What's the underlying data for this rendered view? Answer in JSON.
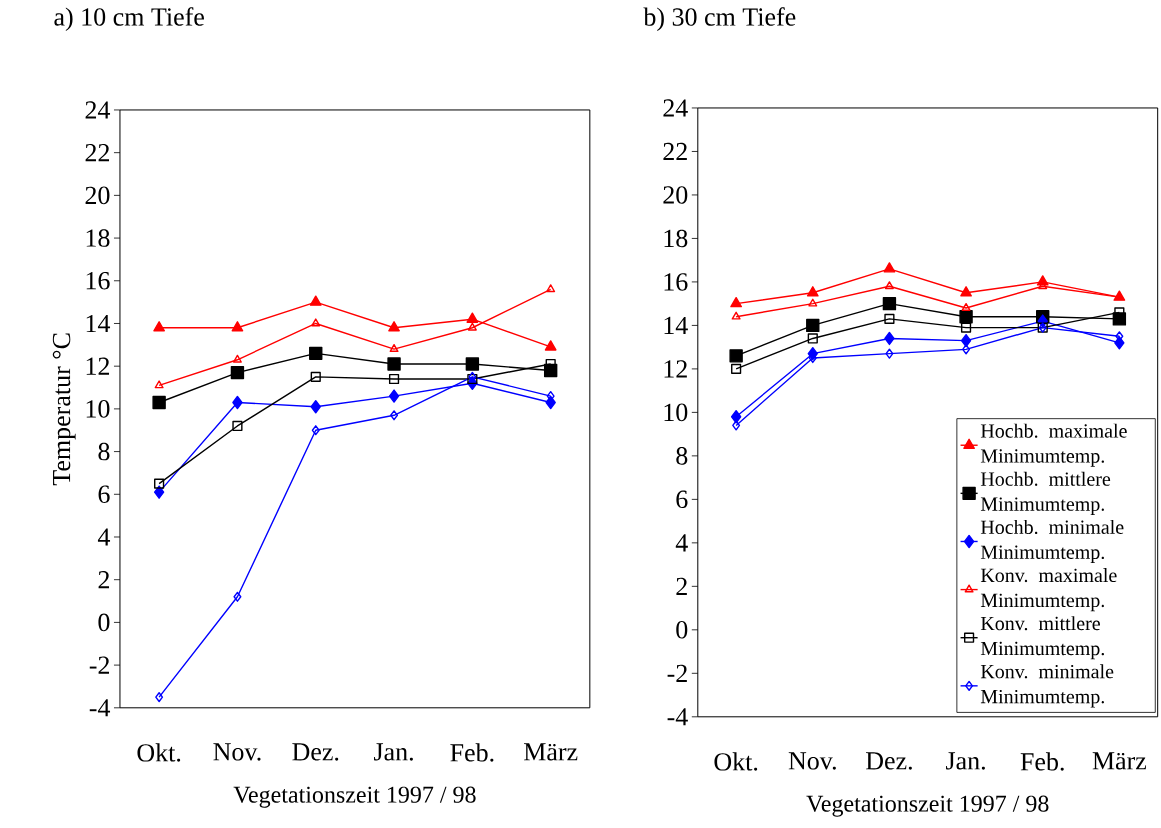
{
  "chart_data": [
    {
      "type": "line",
      "title": "a) 10 cm Tiefe",
      "xlabel": "Vegetationszeit 1997 / 98",
      "ylabel": "Temperatur °C",
      "categories": [
        "Okt.",
        "Nov.",
        "Dez.",
        "Jan.",
        "Feb.",
        "März"
      ],
      "ylim": [
        -4,
        24
      ],
      "yticks": [
        -4,
        -2,
        0,
        2,
        4,
        6,
        8,
        10,
        12,
        14,
        16,
        18,
        20,
        22,
        24
      ],
      "grid": false,
      "legend": false,
      "series": [
        {
          "color": "#ff0000",
          "marker": "triangle",
          "values": [
            13.8,
            13.8,
            15.0,
            13.8,
            14.2,
            12.9
          ]
        },
        {
          "color": "#000000",
          "marker": "square",
          "values": [
            10.3,
            11.7,
            12.6,
            12.1,
            12.1,
            11.8
          ]
        },
        {
          "color": "#0000ff",
          "marker": "diamond",
          "values": [
            6.1,
            10.3,
            10.1,
            10.6,
            11.2,
            10.3
          ]
        },
        {
          "color": "#ff0000",
          "marker": "triangle open",
          "values": [
            11.1,
            12.3,
            14.0,
            12.8,
            13.8,
            15.6
          ]
        },
        {
          "color": "#000000",
          "marker": "square open",
          "values": [
            6.5,
            9.2,
            11.5,
            11.4,
            11.4,
            12.1
          ]
        },
        {
          "color": "#0000ff",
          "marker": "diamond open",
          "values": [
            -3.5,
            1.2,
            9.0,
            9.7,
            11.5,
            10.6
          ]
        }
      ]
    },
    {
      "type": "line",
      "title": "b) 30 cm Tiefe",
      "xlabel": "Vegetationszeit 1997 / 98",
      "categories": [
        "Okt.",
        "Nov.",
        "Dez.",
        "Jan.",
        "Feb.",
        "März"
      ],
      "ylim": [
        -4,
        24
      ],
      "yticks": [
        -4,
        -2,
        0,
        2,
        4,
        6,
        8,
        10,
        12,
        14,
        16,
        18,
        20,
        22,
        24
      ],
      "grid": false,
      "legend": "bottom right",
      "series": [
        {
          "name": "Hochb. maximale Minimumtemp.",
          "color": "#ff0000",
          "marker": "triangle",
          "values": [
            15.0,
            15.5,
            16.6,
            15.5,
            16.0,
            15.3
          ]
        },
        {
          "name": "Hochb. mittlere Minimumtemp.",
          "color": "#000000",
          "marker": "square",
          "values": [
            12.6,
            14.0,
            15.0,
            14.4,
            14.4,
            14.3
          ]
        },
        {
          "name": "Hochb. minimale Minimumtemp.",
          "color": "#0000ff",
          "marker": "diamond",
          "values": [
            9.8,
            12.7,
            13.4,
            13.3,
            14.2,
            13.2
          ]
        },
        {
          "name": "Konv. maximale Minimumtemp.",
          "color": "#ff0000",
          "marker": "triangle open",
          "values": [
            14.4,
            15.0,
            15.8,
            14.8,
            15.8,
            15.3
          ]
        },
        {
          "name": "Konv. mittlere Minimumtemp.",
          "color": "#000000",
          "marker": "square open",
          "values": [
            12.0,
            13.4,
            14.3,
            13.9,
            13.9,
            14.6
          ]
        },
        {
          "name": "Konv. minimale Minimumtemp.",
          "color": "#0000ff",
          "marker": "diamond open",
          "values": [
            9.4,
            12.5,
            12.7,
            12.9,
            13.9,
            13.5
          ]
        }
      ]
    }
  ]
}
